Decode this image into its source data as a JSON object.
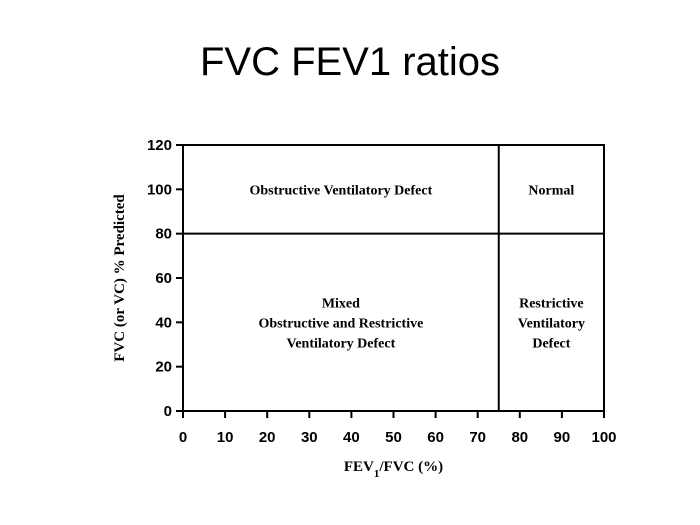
{
  "slide": {
    "title": "FVC FEV1 ratios"
  },
  "chart_data": {
    "type": "region-map",
    "title": "",
    "xlabel_main": "FEV",
    "xlabel_sub": "1",
    "xlabel_rest": "/FVC (%)",
    "ylabel": "FVC (or VC) % Predicted",
    "xlim": [
      0,
      100
    ],
    "ylim": [
      0,
      120
    ],
    "xticks": [
      0,
      10,
      20,
      30,
      40,
      50,
      60,
      70,
      80,
      90,
      100
    ],
    "yticks": [
      0,
      20,
      40,
      60,
      80,
      100,
      120
    ],
    "grid": false,
    "dividers": {
      "x": 75,
      "y": 80
    },
    "regions": [
      {
        "name": "obstructive",
        "x_range": [
          0,
          75
        ],
        "y_range": [
          80,
          120
        ],
        "lines": [
          "Obstructive Ventilatory Defect"
        ]
      },
      {
        "name": "normal",
        "x_range": [
          75,
          100
        ],
        "y_range": [
          80,
          120
        ],
        "lines": [
          "Normal"
        ]
      },
      {
        "name": "mixed",
        "x_range": [
          0,
          75
        ],
        "y_range": [
          0,
          80
        ],
        "lines": [
          "Mixed",
          "Obstructive and Restrictive",
          "Ventilatory Defect"
        ]
      },
      {
        "name": "restrictive",
        "x_range": [
          75,
          100
        ],
        "y_range": [
          0,
          80
        ],
        "lines": [
          "Restrictive",
          "Ventilatory",
          "Defect"
        ]
      }
    ]
  }
}
